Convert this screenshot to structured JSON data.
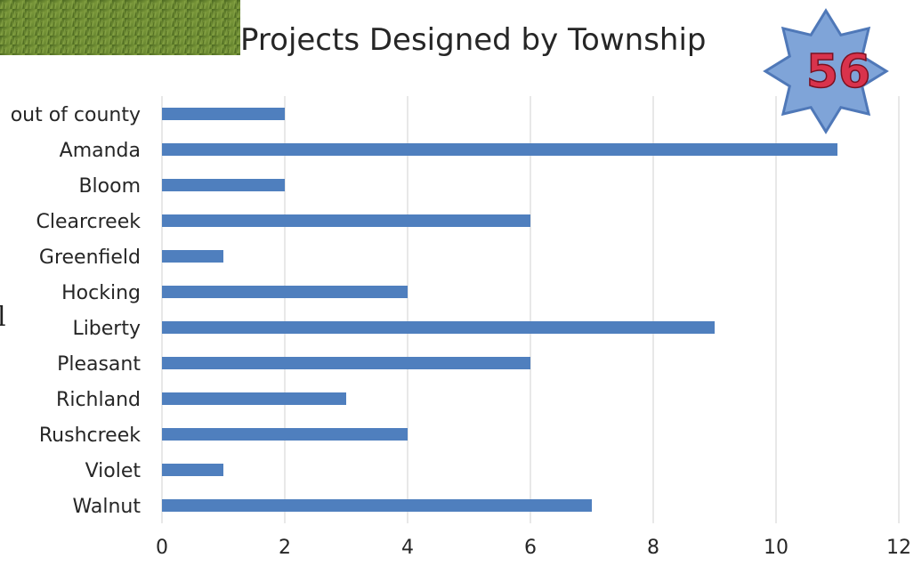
{
  "badge": {
    "number": "56"
  },
  "stray_glyph": "l",
  "chart_data": {
    "type": "bar",
    "orientation": "horizontal",
    "title": "Projects Designed by Township",
    "categories": [
      "out of county",
      "Amanda",
      "Bloom",
      "Clearcreek",
      "Greenfield",
      "Hocking",
      "Liberty",
      "Pleasant",
      "Richland",
      "Rushcreek",
      "Violet",
      "Walnut"
    ],
    "values": [
      2,
      11,
      2,
      6,
      1,
      4,
      9,
      6,
      3,
      4,
      1,
      7
    ],
    "xlim": [
      0,
      12
    ],
    "xticks": [
      0,
      2,
      4,
      6,
      8,
      10,
      12
    ],
    "grid": "vertical",
    "legend": "none",
    "bar_color": "#4f7fbe"
  },
  "colors": {
    "grass_dark": "#4d6b24",
    "grass_light": "#7d9a3c",
    "badge_fill": "#7fa4d8",
    "badge_stroke": "#4f78b8"
  }
}
